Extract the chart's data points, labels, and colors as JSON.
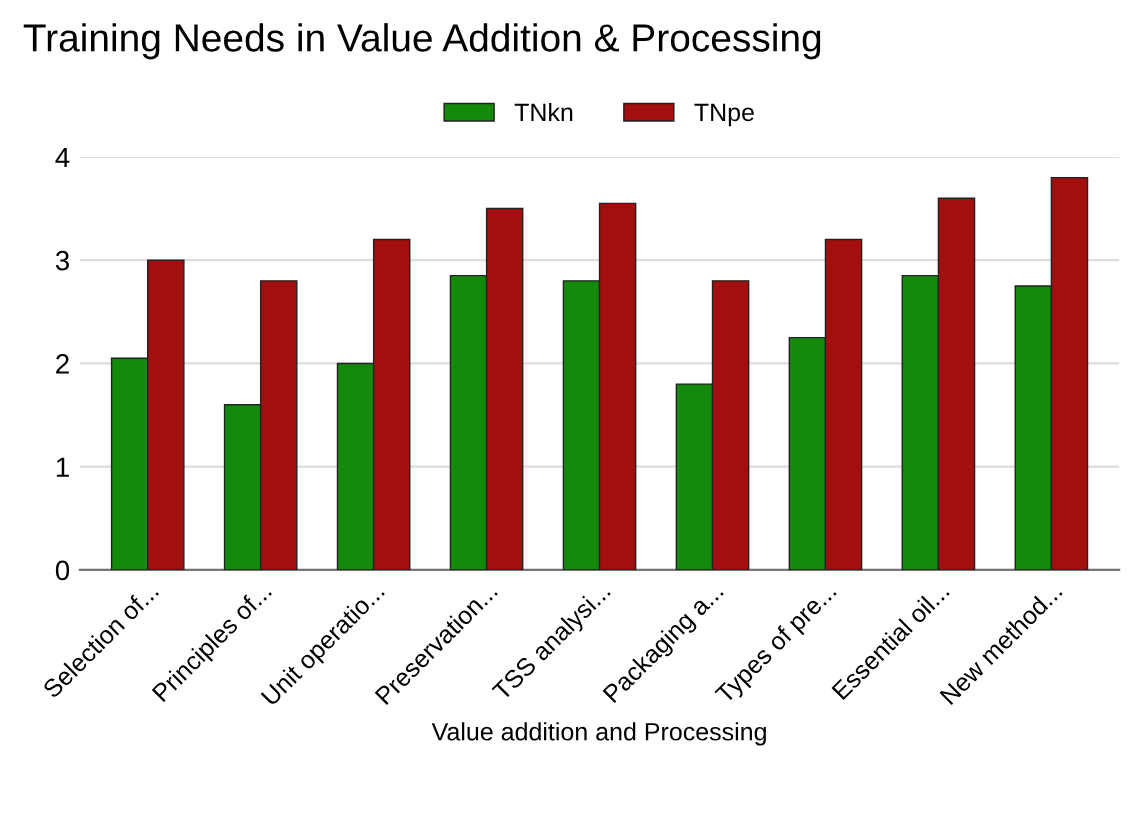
{
  "chart_data": {
    "type": "bar",
    "title": "Training Needs in Value Addition & Processing",
    "xlabel": "Value addition and Processing",
    "categories": [
      "Selection of...",
      "Principles of...",
      "Unit operatio...",
      "Preservation...",
      "TSS analysi...",
      "Packaging a...",
      "Types of pre...",
      "Essential oil...",
      "New method..."
    ],
    "series": [
      {
        "name": "TNkn",
        "color": "#138a0c",
        "values": [
          2.05,
          1.6,
          2.0,
          2.85,
          2.8,
          1.8,
          2.25,
          2.85,
          2.75
        ]
      },
      {
        "name": "TNpe",
        "color": "#a30f0f",
        "values": [
          3.0,
          2.8,
          3.2,
          3.5,
          3.55,
          2.8,
          3.2,
          3.6,
          3.8
        ]
      }
    ],
    "ylim": [
      0,
      4
    ],
    "yticks": [
      0,
      1,
      2,
      3,
      4
    ],
    "grid": "y",
    "legend": "top"
  }
}
